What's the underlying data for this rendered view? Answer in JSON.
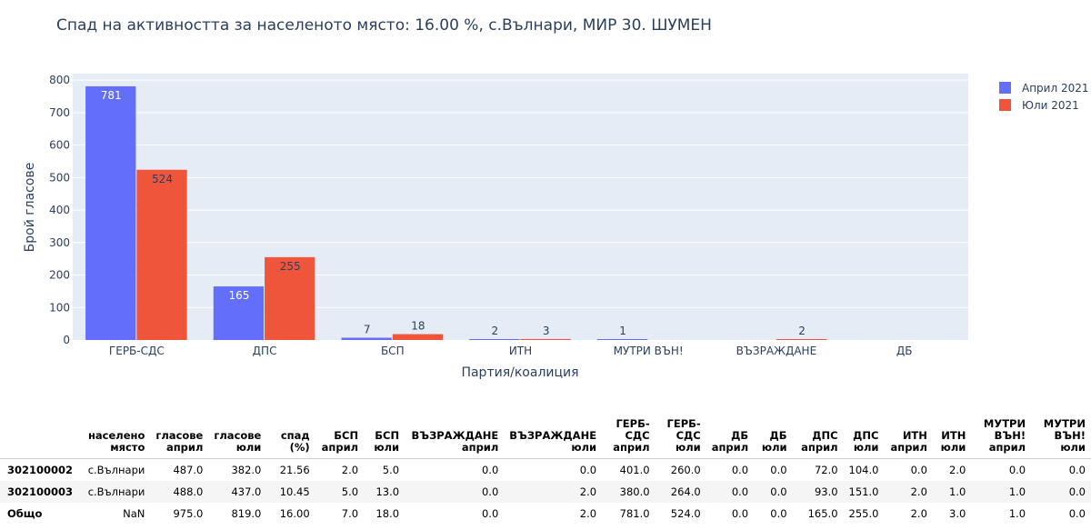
{
  "title": "Спад на активността за населеното място: 16.00 %, с.Вълнари, МИР 30. ШУМЕН",
  "chart_data": {
    "type": "bar",
    "categories": [
      "ГЕРБ-СДС",
      "ДПС",
      "БСП",
      "ИТН",
      "МУТРИ ВЪН!",
      "ВЪЗРАЖДАНЕ",
      "ДБ"
    ],
    "series": [
      {
        "name": "Април 2021",
        "color": "#636efa",
        "values": [
          781,
          165,
          7,
          2,
          1,
          0,
          0
        ],
        "labels": [
          "781",
          "165",
          "7",
          "2",
          "1",
          "",
          ""
        ]
      },
      {
        "name": "Юли 2021",
        "color": "#ef553b",
        "values": [
          524,
          255,
          18,
          3,
          0,
          2,
          0
        ],
        "labels": [
          "524",
          "255",
          "18",
          "3",
          "",
          "2",
          ""
        ]
      }
    ],
    "xlabel": "Партия/коалиция",
    "ylabel": "Брой гласове",
    "ylim": [
      0,
      820
    ],
    "yticks": [
      0,
      100,
      200,
      300,
      400,
      500,
      600,
      700,
      800
    ],
    "grid": true,
    "legend_position": "top-right"
  },
  "table": {
    "headers": [
      [
        "",
        ""
      ],
      [
        "населено",
        "място"
      ],
      [
        "гласове",
        "април"
      ],
      [
        "гласове",
        "юли"
      ],
      [
        "спад",
        "(%)"
      ],
      [
        "БСП",
        "април"
      ],
      [
        "БСП",
        "юли"
      ],
      [
        "ВЪЗРАЖДАНЕ",
        "април"
      ],
      [
        "ВЪЗРАЖДАНЕ",
        "юли"
      ],
      [
        "ГЕРБ-",
        "СДС",
        "април"
      ],
      [
        "ГЕРБ-",
        "СДС",
        "юли"
      ],
      [
        "ДБ",
        "април"
      ],
      [
        "ДБ",
        "юли"
      ],
      [
        "ДПС",
        "април"
      ],
      [
        "ДПС",
        "юли"
      ],
      [
        "ИТН",
        "април"
      ],
      [
        "ИТН",
        "юли"
      ],
      [
        "МУТРИ",
        "ВЪН!",
        "април"
      ],
      [
        "МУТРИ",
        "ВЪН!",
        "юли"
      ]
    ],
    "rows": [
      [
        "302100002",
        "с.Вълнари",
        "487.0",
        "382.0",
        "21.56",
        "2.0",
        "5.0",
        "0.0",
        "0.0",
        "401.0",
        "260.0",
        "0.0",
        "0.0",
        "72.0",
        "104.0",
        "0.0",
        "2.0",
        "0.0",
        "0.0"
      ],
      [
        "302100003",
        "с.Вълнари",
        "488.0",
        "437.0",
        "10.45",
        "5.0",
        "13.0",
        "0.0",
        "2.0",
        "380.0",
        "264.0",
        "0.0",
        "0.0",
        "93.0",
        "151.0",
        "2.0",
        "1.0",
        "1.0",
        "0.0"
      ],
      [
        "Общо",
        "NaN",
        "975.0",
        "819.0",
        "16.00",
        "7.0",
        "18.0",
        "0.0",
        "2.0",
        "781.0",
        "524.0",
        "0.0",
        "0.0",
        "165.0",
        "255.0",
        "2.0",
        "3.0",
        "1.0",
        "0.0"
      ]
    ]
  }
}
